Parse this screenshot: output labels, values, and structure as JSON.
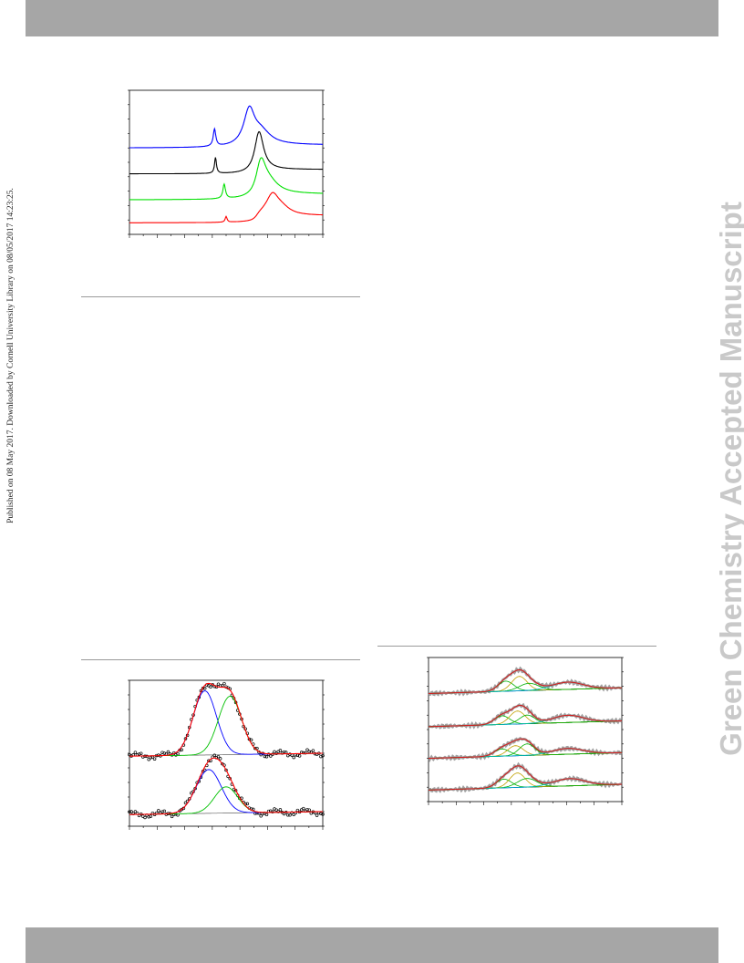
{
  "header": {
    "background": "#a6a6a6"
  },
  "footer": {
    "background": "#a6a6a6"
  },
  "left_margin_text": "Published on 08 May 2017. Downloaded by Cornell University Library on 08/05/2017 14:23:25.",
  "watermark": "Green Chemistry Accepted Manuscript",
  "chart_data": [
    {
      "type": "line",
      "note_panel": "top-left spectra, unlabeled axes",
      "xlim": [
        0,
        100
      ],
      "ylim": [
        0,
        100
      ],
      "series": [
        {
          "color": "#0000ff",
          "offset": 60,
          "peaks": [
            [
              44,
              12,
              0.8
            ],
            [
              62,
              25,
              3.5
            ],
            [
              68,
              8,
              6
            ]
          ],
          "step": 2
        },
        {
          "color": "#000000",
          "offset": 42,
          "peaks": [
            [
              44.5,
              11,
              0.6
            ],
            [
              67,
              27,
              2.8
            ]
          ],
          "step": 3
        },
        {
          "color": "#00e000",
          "offset": 24,
          "peaks": [
            [
              49,
              10,
              0.8
            ],
            [
              68,
              20,
              3
            ],
            [
              72,
              8,
              6
            ]
          ],
          "step": 4
        },
        {
          "color": "#ff0000",
          "offset": 8,
          "peaks": [
            [
              50,
              4,
              0.6
            ],
            [
              74,
              14,
              4
            ],
            [
              79,
              4,
              5
            ]
          ],
          "step": 5
        }
      ]
    },
    {
      "type": "line",
      "note_panel": "bottom-left fitted spectra, unlabeled axes",
      "xlim": [
        0,
        100
      ],
      "ylim": [
        0,
        100
      ],
      "stacks": [
        {
          "offset": 48,
          "components": [
            [
              39,
              44,
              6
            ],
            [
              52,
              40,
              6
            ]
          ]
        },
        {
          "offset": 8,
          "components": [
            [
              41,
              30,
              6.5
            ],
            [
              50,
              18,
              6
            ]
          ]
        }
      ],
      "colors": {
        "envelope": "#ff0000",
        "comp1": "#0000ff",
        "comp2": "#00c000",
        "baseline": "#666666",
        "points": "#000000"
      }
    },
    {
      "type": "line",
      "note_panel": "bottom-right fitted spectra, unlabeled axes",
      "xlim": [
        0,
        100
      ],
      "ylim": [
        0,
        100
      ],
      "stacks": [
        {
          "offset": 75,
          "components": [
            [
              40,
              7,
              4
            ],
            [
              47,
              10,
              4
            ],
            [
              52,
              5,
              5
            ],
            [
              72,
              5,
              8
            ]
          ]
        },
        {
          "offset": 52,
          "components": [
            [
              38,
              6,
              4
            ],
            [
              46,
              9,
              4
            ],
            [
              51,
              6,
              4
            ],
            [
              72,
              5,
              8
            ]
          ]
        },
        {
          "offset": 30,
          "components": [
            [
              38,
              5,
              4
            ],
            [
              45,
              7,
              4
            ],
            [
              51,
              8,
              4
            ],
            [
              72,
              4,
              8
            ]
          ]
        },
        {
          "offset": 8,
          "components": [
            [
              39,
              6,
              4
            ],
            [
              46,
              10,
              4
            ],
            [
              51,
              6,
              5
            ],
            [
              73,
              5,
              8
            ]
          ]
        }
      ],
      "colors": {
        "envelope": "#d02020",
        "data": "#808080",
        "comps": [
          "#00b000",
          "#c0a000",
          "#00b000",
          "#00c0c0"
        ],
        "baseline": "#0000d0"
      }
    }
  ]
}
